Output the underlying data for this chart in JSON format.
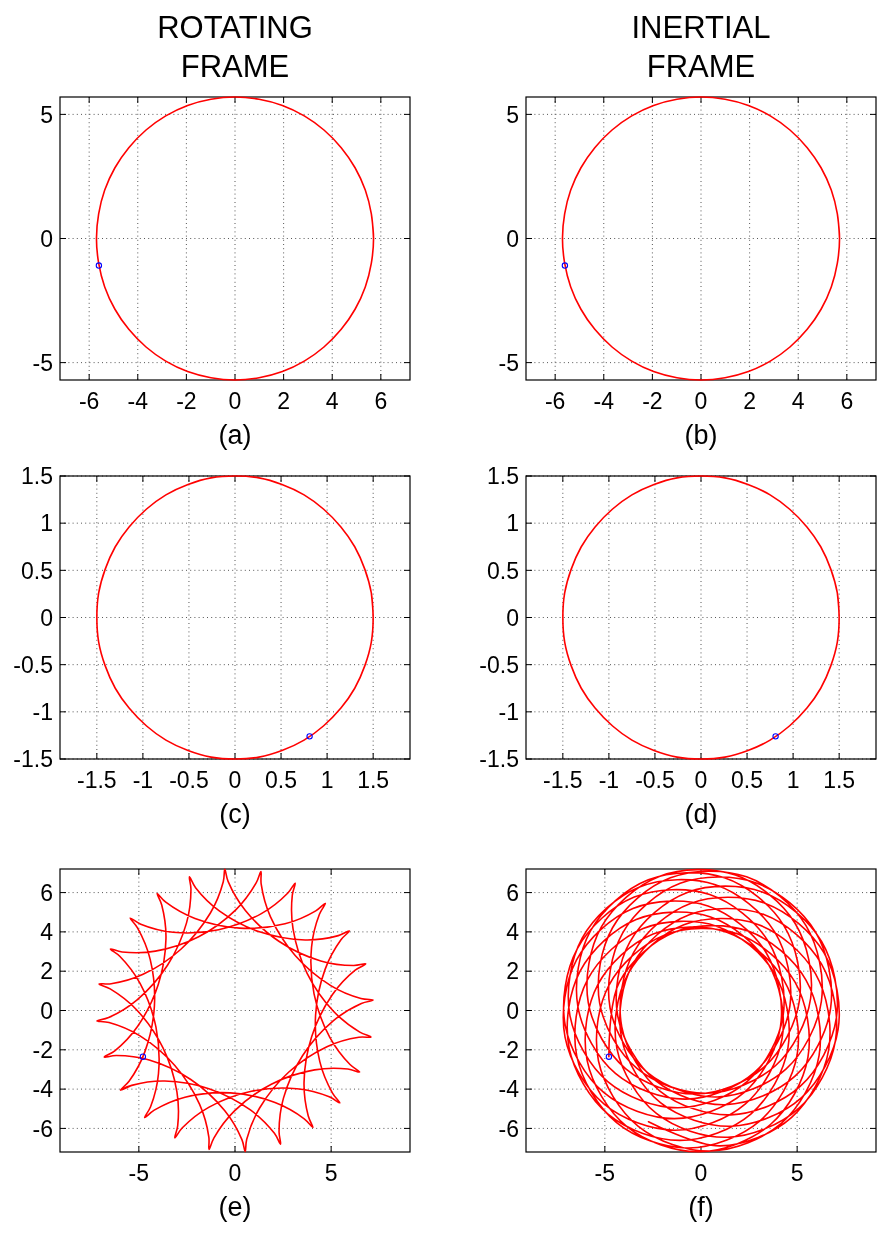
{
  "chart_data": [
    {
      "type": "line",
      "title": "ROTATING FRAME",
      "xlabel": "(a)",
      "series": [
        {
          "color": "#ff0000",
          "x": [
            5.7,
            5.61,
            5.36,
            4.94,
            4.37,
            3.66,
            2.85,
            1.95,
            0.99,
            0,
            -0.99,
            -1.95,
            -2.85,
            -3.66,
            -4.37,
            -4.94,
            -5.36,
            -5.61,
            -5.7,
            -5.61,
            -5.36,
            -4.94,
            -4.37,
            -3.66,
            -2.85,
            -1.95,
            -0.99,
            0,
            0.99,
            1.95,
            2.85,
            3.66,
            4.37,
            4.94,
            5.36,
            5.61,
            5.7,
            5.61
          ],
          "values": [
            0,
            0.99,
            1.95,
            2.85,
            3.66,
            4.37,
            4.94,
            5.36,
            5.61,
            5.7,
            5.61,
            5.36,
            4.94,
            4.37,
            3.66,
            2.85,
            1.95,
            0.99,
            0,
            -0.99,
            -1.95,
            -2.85,
            -3.66,
            -4.37,
            -4.94,
            -5.36,
            -5.61,
            -5.7,
            -5.61,
            -5.36,
            -4.94,
            -4.37,
            -3.66,
            -2.85,
            -1.95,
            -0.99,
            0,
            0.99
          ]
        },
        {
          "type": "scatter",
          "marker": "circle",
          "color": "#0000ff",
          "x": [
            -5.6
          ],
          "values": [
            -1.09
          ]
        }
      ],
      "xlim": [
        -7.2,
        7.2
      ],
      "ylim": [
        -5.7,
        5.7
      ],
      "xticks": [
        -6,
        -4,
        -2,
        0,
        2,
        4,
        6
      ],
      "yticks": [
        -5,
        0,
        5
      ],
      "grid": true
    },
    {
      "type": "line",
      "title": "INERTIAL FRAME",
      "xlabel": "(b)",
      "series": [
        {
          "color": "#ff0000",
          "x": [
            5.7,
            5.61,
            5.36,
            4.94,
            4.37,
            3.66,
            2.85,
            1.95,
            0.99,
            0,
            -0.99,
            -1.95,
            -2.85,
            -3.66,
            -4.37,
            -4.94,
            -5.36,
            -5.61,
            -5.7,
            -5.61,
            -5.36,
            -4.94,
            -4.37,
            -3.66,
            -2.85,
            -1.95,
            -0.99,
            0,
            0.99,
            1.95,
            2.85,
            3.66,
            4.37,
            4.94,
            5.36,
            5.61,
            5.7,
            5.61
          ],
          "values": [
            0,
            0.99,
            1.95,
            2.85,
            3.66,
            4.37,
            4.94,
            5.36,
            5.61,
            5.7,
            5.61,
            5.36,
            4.94,
            4.37,
            3.66,
            2.85,
            1.95,
            0.99,
            0,
            -0.99,
            -1.95,
            -2.85,
            -3.66,
            -4.37,
            -4.94,
            -5.36,
            -5.61,
            -5.7,
            -5.61,
            -5.36,
            -4.94,
            -4.37,
            -3.66,
            -2.85,
            -1.95,
            -0.99,
            0,
            0.99
          ]
        },
        {
          "type": "scatter",
          "marker": "circle",
          "color": "#0000ff",
          "x": [
            -5.6
          ],
          "values": [
            -1.09
          ]
        }
      ],
      "xlim": [
        -7.2,
        7.2
      ],
      "ylim": [
        -5.7,
        5.7
      ],
      "xticks": [
        -6,
        -4,
        -2,
        0,
        2,
        4,
        6
      ],
      "yticks": [
        -5,
        0,
        5
      ],
      "grid": true
    },
    {
      "type": "line",
      "xlabel": "(c)",
      "series": [
        {
          "color": "#ff0000",
          "x": [
            1.5,
            1.48,
            1.41,
            1.3,
            1.15,
            0.96,
            0.75,
            0.51,
            0.26,
            0,
            -0.26,
            -0.51,
            -0.75,
            -0.96,
            -1.15,
            -1.3,
            -1.41,
            -1.48,
            -1.5,
            -1.48,
            -1.41,
            -1.3,
            -1.15,
            -0.96,
            -0.75,
            -0.51,
            -0.26,
            0,
            0.26,
            0.51,
            0.75,
            0.96,
            1.15,
            1.3,
            1.41,
            1.48,
            1.5,
            1.48
          ],
          "values": [
            0,
            0.26,
            0.51,
            0.75,
            0.96,
            1.15,
            1.3,
            1.41,
            1.48,
            1.5,
            1.48,
            1.41,
            1.3,
            1.15,
            0.96,
            0.75,
            0.51,
            0.26,
            0,
            -0.26,
            -0.51,
            -0.75,
            -0.96,
            -1.15,
            -1.3,
            -1.41,
            -1.48,
            -1.5,
            -1.48,
            -1.41,
            -1.3,
            -1.15,
            -0.96,
            -0.75,
            -0.51,
            -0.26,
            0,
            0.26
          ]
        },
        {
          "type": "scatter",
          "marker": "circle",
          "color": "#0000ff",
          "x": [
            0.81
          ],
          "values": [
            -1.26
          ]
        }
      ],
      "xlim": [
        -1.9,
        1.9
      ],
      "ylim": [
        -1.5,
        1.5
      ],
      "xticks": [
        -1.5,
        -1,
        -0.5,
        0,
        0.5,
        1,
        1.5
      ],
      "yticks": [
        -1.5,
        -1,
        -0.5,
        0,
        0.5,
        1,
        1.5
      ],
      "grid": true
    },
    {
      "type": "line",
      "xlabel": "(d)",
      "series": [
        {
          "color": "#ff0000",
          "x": [
            1.5,
            1.48,
            1.41,
            1.3,
            1.15,
            0.96,
            0.75,
            0.51,
            0.26,
            0,
            -0.26,
            -0.51,
            -0.75,
            -0.96,
            -1.15,
            -1.3,
            -1.41,
            -1.48,
            -1.5,
            -1.48,
            -1.41,
            -1.3,
            -1.15,
            -0.96,
            -0.75,
            -0.51,
            -0.26,
            0,
            0.26,
            0.51,
            0.75,
            0.96,
            1.15,
            1.3,
            1.41,
            1.48,
            1.5,
            1.48
          ],
          "values": [
            0,
            0.26,
            0.51,
            0.75,
            0.96,
            1.15,
            1.3,
            1.41,
            1.48,
            1.5,
            1.48,
            1.41,
            1.3,
            1.15,
            0.96,
            0.75,
            0.51,
            0.26,
            0,
            -0.26,
            -0.51,
            -0.75,
            -0.96,
            -1.15,
            -1.3,
            -1.41,
            -1.48,
            -1.5,
            -1.48,
            -1.41,
            -1.3,
            -1.15,
            -0.96,
            -0.75,
            -0.51,
            -0.26,
            0,
            0.26
          ]
        },
        {
          "type": "scatter",
          "marker": "circle",
          "color": "#0000ff",
          "x": [
            0.81
          ],
          "values": [
            -1.26
          ]
        }
      ],
      "xlim": [
        -1.9,
        1.9
      ],
      "ylim": [
        -1.5,
        1.5
      ],
      "xticks": [
        -1.5,
        -1,
        -0.5,
        0,
        0.5,
        1,
        1.5
      ],
      "yticks": [
        -1.5,
        -1,
        -0.5,
        0,
        0.5,
        1,
        1.5
      ],
      "grid": true
    },
    {
      "type": "line",
      "xlabel": "(e)",
      "series": [
        {
          "color": "#ff0000",
          "x": [
            -5.95,
            -5.37,
            -3.65,
            -1.32,
            0.8,
            2.05,
            2.37,
            2.29,
            2.52,
            3.51,
            5.09,
            6.57,
            7.18,
            6.55,
            4.96,
            3.13,
            1.84,
            1.36,
            1.35,
            1.1,
            0.04,
            -1.89,
            -4.14,
            -5.87,
            -6.48,
            -5.98,
            -4.93,
            -4.11,
            -3.98,
            -4.39,
            -4.7,
            -4.2,
            -2.6,
            -0.24,
            2.08,
            3.6,
            4.05,
            3.81,
            3.59,
            3.99,
            5.06,
            6.25,
            6.8,
            6.17,
            4.46,
            2.3,
            0.54,
            -0.36,
            -0.53,
            -0.61,
            -1.28,
            -2.8,
            -4.78,
            -6.44,
            -7.07,
            -6.49,
            -5.12,
            -3.75,
            -3.02,
            -2.98,
            -3.13,
            -2.75,
            -1.37,
            0.85,
            3.22,
            4.9,
            5.45,
            5.07,
            4.41,
            4.19,
            4.68,
            5.51,
            5.95,
            5.37,
            3.65,
            1.32,
            -0.8,
            -2.05,
            -2.37,
            -2.29,
            -2.52,
            -3.51,
            -5.09,
            -6.57,
            -7.18,
            -6.55,
            -4.96,
            -3.13,
            -1.84,
            -1.36,
            -1.35,
            -1.1,
            -0.04,
            1.89,
            4.14,
            5.87,
            6.48,
            5.98,
            4.93,
            4.11,
            3.98,
            4.39,
            4.7,
            4.2,
            2.6,
            0.24,
            -2.08,
            -3.6,
            -4.05,
            -3.81,
            -3.59,
            -3.99,
            -5.06,
            -6.25,
            -6.8,
            -6.17,
            -4.46,
            -2.3,
            -0.54,
            0.36,
            0.53,
            0.61,
            1.28,
            2.8,
            4.78,
            6.44,
            7.07,
            6.49,
            5.12,
            3.75,
            3.02,
            2.98,
            3.13,
            2.75,
            1.37,
            -0.85,
            -3.22,
            -4.9,
            -5.45,
            -5.07,
            -4.41,
            -4.19,
            -4.68,
            -5.51,
            -5.95,
            -5.37
          ],
          "values": [
            -4.05,
            -3.81,
            -3.59,
            -3.99,
            -5.06,
            -6.25,
            -6.8,
            -6.17,
            -4.46,
            -2.3,
            -0.54,
            0.36,
            0.53,
            0.61,
            1.28,
            2.8,
            4.78,
            6.44,
            7.07,
            6.49,
            5.12,
            3.75,
            3.02,
            2.98,
            3.13,
            2.75,
            1.37,
            -0.85,
            -3.22,
            -4.9,
            -5.45,
            -5.07,
            -4.41,
            -4.19,
            -4.68,
            -5.51,
            -5.95,
            -5.37,
            -3.65,
            -1.32,
            0.8,
            2.05,
            2.37,
            2.29,
            2.52,
            3.51,
            5.09,
            6.57,
            7.18,
            6.55,
            4.96,
            3.13,
            1.84,
            1.36,
            1.35,
            1.1,
            0.04,
            -1.89,
            -4.14,
            -5.87,
            -6.48,
            -5.98,
            -4.93,
            -4.11,
            -3.98,
            -4.39,
            -4.7,
            -4.2,
            -2.6,
            -0.24,
            2.08,
            3.6,
            4.05,
            3.81,
            3.59,
            3.99,
            5.06,
            6.25,
            6.8,
            6.17,
            4.46,
            2.3,
            0.54,
            -0.36,
            -0.53,
            -0.61,
            -1.28,
            -2.8,
            -4.78,
            -6.44,
            -7.07,
            -6.49,
            -5.12,
            -3.75,
            -3.02,
            -2.98,
            -3.13,
            -2.75,
            -1.37,
            0.85,
            3.22,
            4.9,
            5.45,
            5.07,
            4.41,
            4.19,
            4.68,
            5.51,
            5.95,
            5.37,
            3.65,
            1.32,
            -0.8,
            -2.05,
            -2.37,
            -2.29,
            -2.52,
            -3.51,
            -5.09,
            -6.57,
            -7.18,
            -6.55,
            -4.96,
            -3.13,
            -1.84,
            -1.36,
            -1.35,
            -1.1,
            -0.04,
            1.89,
            4.14,
            5.87,
            6.48,
            5.98,
            4.93,
            4.11,
            3.98,
            4.39,
            4.7,
            4.2,
            2.6,
            0.24,
            -2.08,
            -3.6,
            -4.05,
            -3.81
          ]
        },
        {
          "type": "scatter",
          "marker": "circle",
          "color": "#0000ff",
          "x": [
            -4.79
          ],
          "values": [
            -2.35
          ]
        }
      ],
      "xlim": [
        -9.1,
        9.1
      ],
      "ylim": [
        -7.2,
        7.2
      ],
      "xticks": [
        -5,
        0,
        5
      ],
      "yticks": [
        -6,
        -4,
        -2,
        0,
        2,
        4,
        6
      ],
      "grid": true
    },
    {
      "type": "line",
      "xlabel": "(f)",
      "series": [
        {
          "color": "#ff0000",
          "x": [
            -2.73,
            1.01,
            4.7,
            6.64,
            5.95,
            2.96,
            -0.89,
            -3.8,
            -4.37,
            -2.32,
            1.4,
            5.07,
            6.99,
            6.27,
            3.27,
            -0.61,
            -3.54,
            -4.13,
            -2.11,
            1.59,
            5.23,
            7.13,
            6.39,
            3.35,
            -0.55,
            -3.5,
            -4.12,
            -2.12,
            1.55,
            5.17,
            7.04,
            6.27,
            3.22,
            -0.71,
            -3.69,
            -4.33,
            -2.36,
            1.29,
            4.89,
            6.74,
            5.95,
            2.87,
            -1.08,
            -4.07,
            -4.73,
            -2.78,
            0.85,
            4.43,
            6.26,
            5.46,
            2.37,
            -1.59,
            -4.6,
            -5.27,
            -3.33,
            0.3,
            3.87,
            5.7,
            4.89,
            1.79,
            -2.17,
            -5.18,
            -5.86,
            -3.91,
            -0.29,
            3.29,
            5.12,
            4.31,
            1.22,
            -2.74,
            -5.74,
            -6.4,
            -4.45,
            -0.81,
            2.78,
            4.62,
            3.83,
            0.75,
            -3.19,
            -6.18,
            -6.82,
            -4.85,
            -1.2,
            2.41,
            4.27,
            3.5,
            0.45,
            -3.47,
            -6.43,
            -7.06,
            -5.06,
            -1.39,
            2.25,
            4.13,
            3.39,
            0.36,
            -3.54,
            -6.47,
            -7.07,
            -5.05,
            -1.35,
            2.31,
            4.22,
            3.5,
            0.5,
            -3.37,
            -6.28,
            -6.86,
            -4.82,
            -1.09,
            2.59,
            4.52,
            3.83,
            0.84,
            -3.01,
            -5.9,
            -6.46,
            -4.39,
            -0.65,
            3.05,
            5.0,
            4.31,
            1.34,
            -2.49,
            -5.37,
            -5.92,
            -3.85,
            -0.1,
            3.61,
            5.56,
            4.89,
            1.92,
            -1.91,
            -4.79,
            -5.33,
            -3.26,
            0.49,
            4.19,
            6.14,
            5.46,
            2.49,
            -1.35,
            -4.24,
            -4.79
          ],
          "values": [
            -5.66,
            -6.89,
            -5.45,
            -2.0,
            1.88,
            4.38,
            4.36,
            1.85,
            -1.95,
            -5.24,
            -6.45,
            -4.99,
            -1.53,
            2.36,
            4.88,
            4.87,
            2.37,
            -1.41,
            -4.69,
            -5.89,
            -4.43,
            -0.96,
            2.94,
            5.45,
            5.45,
            2.96,
            -0.83,
            -4.11,
            -5.31,
            -3.85,
            -0.38,
            3.51,
            6.02,
            6.01,
            3.51,
            -0.28,
            -3.57,
            -4.79,
            -3.34,
            0.12,
            4.0,
            6.49,
            6.47,
            3.95,
            0.14,
            -3.16,
            -4.4,
            -2.97,
            0.47,
            4.32,
            6.8,
            6.75,
            4.21,
            0.38,
            -2.95,
            -4.21,
            -2.81,
            0.61,
            4.44,
            6.89,
            6.82,
            4.25,
            0.39,
            -2.97,
            -4.25,
            -2.87,
            0.52,
            4.32,
            6.75,
            6.65,
            4.06,
            0.18,
            -3.2,
            -4.51,
            -3.15,
            0.21,
            4.0,
            6.4,
            6.29,
            3.68,
            -0.23,
            -3.62,
            -4.95,
            -3.61,
            -0.26,
            3.51,
            5.9,
            5.77,
            3.15,
            -0.76,
            -4.17,
            -5.5,
            -4.17,
            -0.83,
            2.94,
            5.32,
            5.19,
            2.57,
            -1.35,
            -4.75,
            -6.09,
            -4.75,
            -1.41,
            2.36,
            4.76,
            4.63,
            2.01,
            -1.89,
            -5.29,
            -6.61,
            -5.27,
            -1.91,
            1.88,
            4.28,
            4.17,
            1.57,
            -2.32,
            -5.7,
            -7.0,
            -5.63,
            -2.25,
            1.55,
            3.98,
            3.89,
            1.31,
            -2.55,
            -5.91,
            -7.19,
            -5.8,
            -2.39,
            1.44,
            3.89,
            3.83,
            1.28,
            -2.57,
            -5.89,
            -7.15,
            -5.73,
            -2.3,
            1.55,
            4.03,
            3.99,
            1.46,
            -2.35
          ]
        },
        {
          "type": "scatter",
          "marker": "circle",
          "color": "#0000ff",
          "x": [
            -4.79
          ],
          "values": [
            -2.35
          ]
        }
      ],
      "xlim": [
        -9.1,
        9.1
      ],
      "ylim": [
        -7.2,
        7.2
      ],
      "xticks": [
        -5,
        0,
        5
      ],
      "yticks": [
        -6,
        -4,
        -2,
        0,
        2,
        4,
        6
      ],
      "grid": true
    }
  ]
}
